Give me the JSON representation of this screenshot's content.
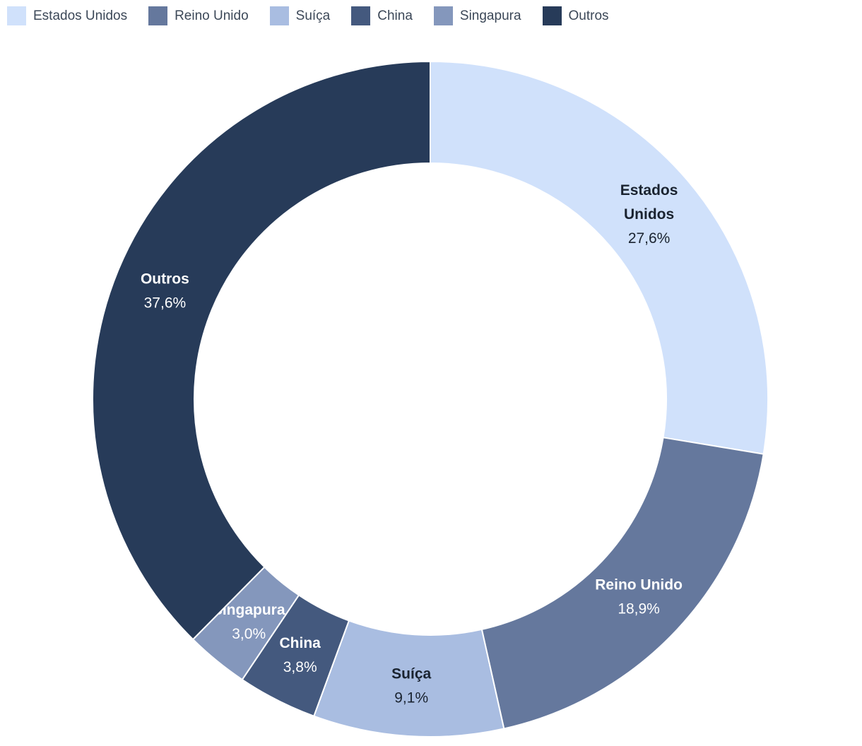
{
  "chart_data": {
    "type": "pie",
    "subtype": "donut",
    "title": "",
    "legend_position": "top",
    "unit": "%",
    "direction": "clockwise",
    "start_angle_deg": 0,
    "legend": [
      "Estados Unidos",
      "Reino Unido",
      "Suíça",
      "China",
      "Singapura",
      "Outros"
    ],
    "slices": [
      {
        "label": "Estados Unidos",
        "label_lines": [
          "Estados",
          "Unidos"
        ],
        "value": 27.6,
        "display_value": "27,6%",
        "color": "#D0E1FB",
        "label_color": "#1A2330"
      },
      {
        "label": "Reino Unido",
        "label_lines": [
          "Reino Unido"
        ],
        "value": 18.9,
        "display_value": "18,9%",
        "color": "#65789D",
        "label_color": "#FFFFFF"
      },
      {
        "label": "Suíça",
        "label_lines": [
          "Suíça"
        ],
        "value": 9.1,
        "display_value": "9,1%",
        "color": "#A9BDE1",
        "label_color": "#1A2330"
      },
      {
        "label": "China",
        "label_lines": [
          "China"
        ],
        "value": 3.8,
        "display_value": "3,8%",
        "color": "#44597E",
        "label_color": "#FFFFFF"
      },
      {
        "label": "Singapura",
        "label_lines": [
          "Singapura"
        ],
        "value": 3.0,
        "display_value": "3,0%",
        "color": "#8497BC",
        "label_color": "#FFFFFF"
      },
      {
        "label": "Outros",
        "label_lines": [
          "Outros"
        ],
        "value": 37.6,
        "display_value": "37,6%",
        "color": "#273B59",
        "label_color": "#FFFFFF"
      }
    ]
  },
  "colors": {
    "background": "#FFFFFF",
    "legend_text": "#3C4858",
    "slice_border": "#FFFFFF"
  }
}
